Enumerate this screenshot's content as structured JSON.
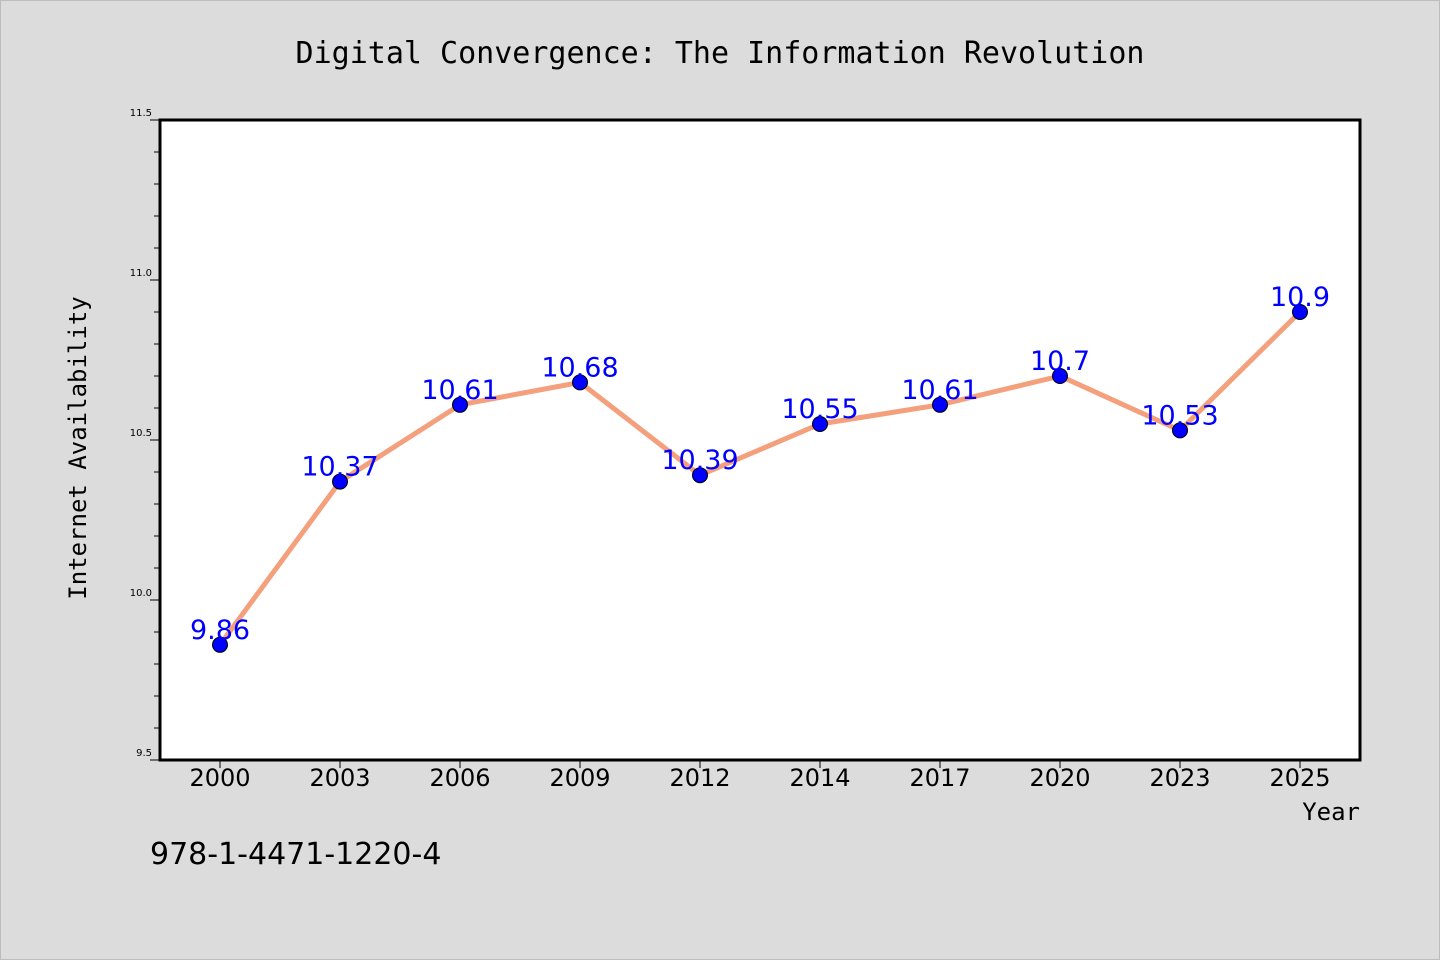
{
  "chart_data": {
    "type": "line",
    "title": "Digital Convergence: The Information Revolution",
    "xlabel": "Year",
    "ylabel": "Internet Availability",
    "categories": [
      "2000",
      "2003",
      "2006",
      "2009",
      "2012",
      "2014",
      "2017",
      "2020",
      "2023",
      "2025"
    ],
    "series": [
      {
        "values": [
          9.86,
          10.37,
          10.61,
          10.68,
          10.39,
          10.55,
          10.61,
          10.7,
          10.53,
          10.9
        ]
      }
    ],
    "data_labels": [
      "9.86",
      "10.37",
      "10.61",
      "10.68",
      "10.39",
      "10.55",
      "10.61",
      "10.7",
      "10.53",
      "10.9"
    ],
    "y_ticks": [
      "9.5",
      "10.0",
      "10.5",
      "11.0",
      "11.5"
    ],
    "ylim": [
      9.5,
      11.5
    ],
    "grid": false,
    "line_color": "#f4a07c",
    "marker_color": "#0000ff",
    "label_color": "#0000ff"
  },
  "annotation": "978-1-4471-1220-4"
}
